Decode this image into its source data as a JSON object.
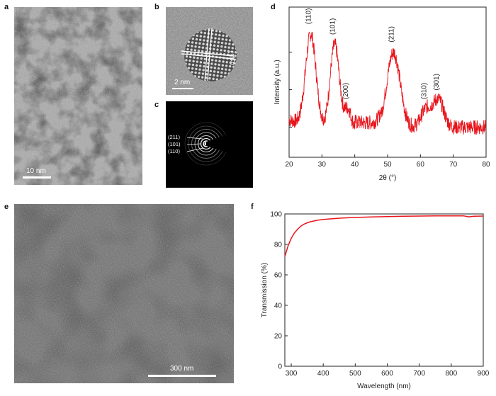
{
  "panels": {
    "a": {
      "letter": "a",
      "scale_label": "10 nm"
    },
    "b": {
      "letter": "b",
      "scale_label": "2 nm",
      "fringe_label": "(110)"
    },
    "c": {
      "letter": "c",
      "ring_labels": [
        "(211)",
        "(101)",
        "(110)"
      ]
    },
    "d": {
      "letter": "d"
    },
    "e": {
      "letter": "e",
      "scale_label": "300 nm"
    },
    "f": {
      "letter": "f"
    }
  },
  "colors": {
    "curve": "#e8141b",
    "axis": "#222222"
  },
  "chart_data": [
    {
      "panel": "d",
      "type": "line",
      "xlabel": "2θ (°)",
      "ylabel": "Intensity (a.u.)",
      "xlim": [
        20,
        80
      ],
      "xticks": [
        20,
        30,
        40,
        50,
        60,
        70,
        80
      ],
      "ylim": [
        0,
        1
      ],
      "y_tick_labels_shown": false,
      "grid": false,
      "peaks": [
        {
          "label": "(110)",
          "x": 26.6,
          "height": 0.62,
          "width": 1.6
        },
        {
          "label": "(101)",
          "x": 33.9,
          "height": 0.55,
          "width": 1.4
        },
        {
          "label": "(200)",
          "x": 37.9,
          "height": 0.12,
          "width": 1.0
        },
        {
          "label": "(211)",
          "x": 51.8,
          "height": 0.5,
          "width": 2.0
        },
        {
          "label": "(310)",
          "x": 61.8,
          "height": 0.12,
          "width": 1.6
        },
        {
          "label": "(301)",
          "x": 65.5,
          "height": 0.18,
          "width": 1.6
        }
      ],
      "baseline": 0.2,
      "noise": 0.05
    },
    {
      "panel": "f",
      "type": "line",
      "xlabel": "Wavelength (nm)",
      "ylabel": "Transmission (%)",
      "xlim": [
        280,
        900
      ],
      "xticks": [
        300,
        400,
        500,
        600,
        700,
        800,
        900
      ],
      "ylim": [
        0,
        100
      ],
      "yticks": [
        0,
        20,
        40,
        60,
        80,
        100
      ],
      "grid": false,
      "x": [
        280,
        290,
        300,
        310,
        320,
        330,
        340,
        350,
        360,
        380,
        400,
        450,
        500,
        550,
        600,
        650,
        700,
        750,
        800,
        840,
        855,
        870,
        900
      ],
      "y": [
        72,
        79,
        84,
        87.5,
        90,
        92,
        93.3,
        94.2,
        94.9,
        95.8,
        96.4,
        97.2,
        97.7,
        98,
        98.3,
        98.5,
        98.6,
        98.7,
        98.7,
        98.7,
        98.1,
        98.5,
        98.6
      ]
    }
  ]
}
